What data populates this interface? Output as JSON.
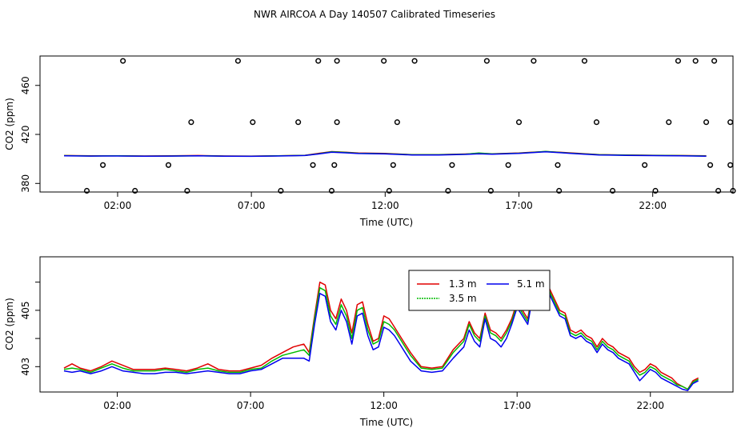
{
  "figure": {
    "title": "NWR AIRCOA A  Day 140507  Calibrated Timeseries"
  },
  "colors": {
    "axis": "#000000",
    "series_1_3m": "#e00000",
    "series_3_5m": "#00bb00",
    "series_5_1m": "#0000ee",
    "markers": "#000000"
  },
  "chart_data": [
    {
      "type": "line",
      "id": "top",
      "title": "",
      "xlabel": "Time (UTC)",
      "ylabel": "CO2 (ppm)",
      "xlim": [
        -0.9,
        25.0
      ],
      "ylim": [
        373,
        484
      ],
      "x_ticks": [
        2,
        7,
        12,
        17,
        22
      ],
      "x_tick_labels": [
        "02:00",
        "07:00",
        "12:00",
        "17:00",
        "22:00"
      ],
      "y_ticks": [
        380,
        420,
        460
      ],
      "y_tick_labels": [
        "380",
        "420",
        "460"
      ],
      "legend": null,
      "grid": false,
      "series": [
        {
          "color_key": "series_1_3m",
          "x": [
            0,
            1,
            2,
            3,
            4,
            5,
            6,
            7,
            8,
            9,
            9.5,
            10,
            10.5,
            11,
            12,
            13,
            14,
            15,
            15.5,
            16,
            17,
            17.5,
            18,
            18.5,
            19,
            20,
            21,
            22,
            23,
            24
          ],
          "y": [
            402.8,
            402.5,
            402.6,
            402.4,
            402.5,
            402.8,
            402.4,
            402.3,
            402.6,
            403,
            404.5,
            406,
            405.5,
            404.8,
            404.5,
            403.5,
            403.5,
            404,
            404.5,
            404.2,
            404.8,
            405.5,
            406,
            405.5,
            404.8,
            403.5,
            403.2,
            403,
            402.8,
            402.5
          ]
        },
        {
          "color_key": "series_3_5m",
          "x": [
            0,
            1,
            2,
            3,
            4,
            5,
            6,
            7,
            8,
            9,
            9.5,
            10,
            10.5,
            11,
            12,
            13,
            14,
            15,
            15.5,
            16,
            17,
            17.5,
            18,
            18.5,
            19,
            20,
            21,
            22,
            23,
            24
          ],
          "y": [
            402.7,
            402.4,
            402.5,
            402.3,
            402.4,
            402.6,
            402.3,
            402.2,
            402.5,
            402.9,
            404.2,
            405.8,
            405.3,
            404.6,
            404.3,
            403.4,
            403.4,
            403.9,
            404.8,
            404.1,
            404.7,
            405.3,
            406.2,
            405.3,
            404.6,
            403.4,
            403.1,
            402.9,
            402.7,
            402.4
          ]
        },
        {
          "color_key": "series_5_1m",
          "x": [
            0,
            1,
            2,
            3,
            4,
            5,
            6,
            7,
            8,
            9,
            9.5,
            10,
            10.5,
            11,
            12,
            13,
            14,
            15,
            15.5,
            16,
            17,
            17.5,
            18,
            18.5,
            19,
            20,
            21,
            22,
            23,
            24
          ],
          "y": [
            402.6,
            402.3,
            402.4,
            402.2,
            402.3,
            402.5,
            402.2,
            402.1,
            402.4,
            402.8,
            404,
            405.5,
            405,
            404.4,
            404.1,
            403.2,
            403.2,
            403.7,
            404.2,
            403.9,
            404.5,
            405.1,
            405.8,
            405.1,
            404.4,
            403.2,
            402.9,
            402.7,
            402.5,
            402.2
          ]
        },
        {
          "color_key": "markers",
          "mode": "markers",
          "x": [
            0.85,
            1.45,
            2.2,
            2.65,
            3.9,
            4.6,
            4.75,
            6.5,
            7.05,
            8.1,
            8.75,
            9.3,
            9.5,
            10.0,
            10.1,
            10.2,
            10.2,
            11.95,
            12.15,
            12.3,
            12.45,
            13.1,
            14.35,
            14.5,
            15.8,
            15.95,
            16.6,
            17.0,
            17.55,
            18.45,
            18.5,
            19.45,
            19.9,
            20.5,
            21.7,
            22.1,
            22.6,
            22.95,
            23.6,
            24.0,
            24.15,
            24.3,
            24.45,
            24.9,
            24.9,
            25.0
          ],
          "y": [
            374,
            395,
            480,
            374,
            395,
            374,
            430,
            480,
            430,
            374,
            430,
            395,
            480,
            374,
            395,
            480,
            430,
            480,
            374,
            395,
            430,
            480,
            374,
            395,
            480,
            374,
            395,
            430,
            480,
            395,
            374,
            480,
            430,
            374,
            395,
            374,
            430,
            480,
            480,
            430,
            395,
            480,
            374,
            430,
            395,
            374
          ]
        }
      ]
    },
    {
      "type": "line",
      "id": "bottom",
      "title": "",
      "xlabel": "Time (UTC)",
      "ylabel": "CO2 (ppm)",
      "xlim": [
        -0.9,
        25.1
      ],
      "ylim": [
        402.1,
        406.9
      ],
      "x_ticks": [
        2,
        7,
        12,
        17,
        22
      ],
      "x_tick_labels": [
        "02:00",
        "07:00",
        "12:00",
        "17:00",
        "22:00"
      ],
      "y_ticks": [
        403,
        404,
        405,
        406
      ],
      "y_tick_labels": [
        "403",
        "",
        "405",
        ""
      ],
      "legend": "top-center",
      "grid": false,
      "series": [
        {
          "name": "1.3 m",
          "color_key": "series_1_3m",
          "x": [
            0,
            0.3,
            0.6,
            1,
            1.4,
            1.8,
            2.2,
            2.6,
            3,
            3.4,
            3.8,
            4.2,
            4.6,
            5,
            5.4,
            5.8,
            6.2,
            6.6,
            7,
            7.4,
            7.8,
            8.2,
            8.6,
            9,
            9.2,
            9.4,
            9.6,
            9.8,
            10,
            10.2,
            10.4,
            10.6,
            10.8,
            11,
            11.2,
            11.4,
            11.6,
            11.8,
            12,
            12.2,
            12.4,
            12.6,
            12.8,
            13,
            13.4,
            13.8,
            14.2,
            14.6,
            15,
            15.2,
            15.4,
            15.6,
            15.8,
            16,
            16.2,
            16.4,
            16.6,
            16.8,
            17,
            17.2,
            17.4,
            17.6,
            17.8,
            18,
            18.2,
            18.4,
            18.6,
            18.8,
            19,
            19.2,
            19.4,
            19.6,
            19.8,
            20,
            20.2,
            20.4,
            20.6,
            20.8,
            21,
            21.2,
            21.4,
            21.6,
            21.8,
            22,
            22.2,
            22.4,
            22.6,
            22.8,
            23,
            23.2,
            23.4,
            23.6,
            23.8
          ],
          "y": [
            402.95,
            403.1,
            402.95,
            402.85,
            403.0,
            403.2,
            403.05,
            402.9,
            402.9,
            402.9,
            402.95,
            402.9,
            402.85,
            402.95,
            403.1,
            402.9,
            402.85,
            402.85,
            402.95,
            403.05,
            403.3,
            403.5,
            403.7,
            403.8,
            403.5,
            404.8,
            406.0,
            405.9,
            405.0,
            404.7,
            405.4,
            405.0,
            404.2,
            405.2,
            405.3,
            404.5,
            403.9,
            404.0,
            404.8,
            404.7,
            404.4,
            404.1,
            403.8,
            403.5,
            403.0,
            402.95,
            403.0,
            403.6,
            404.0,
            404.6,
            404.2,
            404.0,
            404.9,
            404.3,
            404.2,
            404.0,
            404.3,
            404.7,
            405.3,
            405.0,
            404.7,
            405.8,
            406.2,
            405.5,
            405.8,
            405.4,
            405.0,
            404.9,
            404.3,
            404.2,
            404.3,
            404.1,
            404.0,
            403.7,
            404.0,
            403.8,
            403.7,
            403.5,
            403.4,
            403.3,
            403.0,
            402.8,
            402.9,
            403.1,
            403.0,
            402.8,
            402.7,
            402.6,
            402.4,
            402.3,
            402.2,
            402.5,
            402.6
          ]
        },
        {
          "name": "3.5 m",
          "color_key": "series_3_5m",
          "x": [
            0,
            0.3,
            0.6,
            1,
            1.4,
            1.8,
            2.2,
            2.6,
            3,
            3.4,
            3.8,
            4.2,
            4.6,
            5,
            5.4,
            5.8,
            6.2,
            6.6,
            7,
            7.4,
            7.8,
            8.2,
            8.6,
            9,
            9.2,
            9.4,
            9.6,
            9.8,
            10,
            10.2,
            10.4,
            10.6,
            10.8,
            11,
            11.2,
            11.4,
            11.6,
            11.8,
            12,
            12.2,
            12.4,
            12.6,
            12.8,
            13,
            13.4,
            13.8,
            14.2,
            14.6,
            15,
            15.2,
            15.4,
            15.6,
            15.8,
            16,
            16.2,
            16.4,
            16.6,
            16.8,
            17,
            17.2,
            17.4,
            17.6,
            17.8,
            18,
            18.2,
            18.4,
            18.6,
            18.8,
            19,
            19.2,
            19.4,
            19.6,
            19.8,
            20,
            20.2,
            20.4,
            20.6,
            20.8,
            21,
            21.2,
            21.4,
            21.6,
            21.8,
            22,
            22.2,
            22.4,
            22.6,
            22.8,
            23,
            23.2,
            23.4,
            23.6,
            23.8
          ],
          "y": [
            402.9,
            402.95,
            402.9,
            402.8,
            402.95,
            403.1,
            402.95,
            402.85,
            402.85,
            402.85,
            402.9,
            402.85,
            402.8,
            402.9,
            402.95,
            402.85,
            402.8,
            402.8,
            402.9,
            402.95,
            403.2,
            403.4,
            403.5,
            403.6,
            403.4,
            404.7,
            405.8,
            405.7,
            404.8,
            404.5,
            405.2,
            404.8,
            404.0,
            405.0,
            405.1,
            404.3,
            403.8,
            403.9,
            404.6,
            404.5,
            404.3,
            404.0,
            403.7,
            403.4,
            402.95,
            402.9,
            402.95,
            403.5,
            403.9,
            404.5,
            404.1,
            403.9,
            404.8,
            404.2,
            404.1,
            403.9,
            404.2,
            404.6,
            405.2,
            404.9,
            404.6,
            405.7,
            406.1,
            405.4,
            405.7,
            405.3,
            404.9,
            404.8,
            404.2,
            404.1,
            404.2,
            404.0,
            403.9,
            403.6,
            403.9,
            403.7,
            403.6,
            403.4,
            403.3,
            403.2,
            402.9,
            402.7,
            402.8,
            403.0,
            402.9,
            402.7,
            402.6,
            402.5,
            402.35,
            402.3,
            402.2,
            402.45,
            402.55
          ]
        },
        {
          "name": "5.1 m",
          "color_key": "series_5_1m",
          "x": [
            0,
            0.3,
            0.6,
            1,
            1.4,
            1.8,
            2.2,
            2.6,
            3,
            3.4,
            3.8,
            4.2,
            4.6,
            5,
            5.4,
            5.8,
            6.2,
            6.6,
            7,
            7.4,
            7.8,
            8.2,
            8.6,
            9,
            9.2,
            9.4,
            9.6,
            9.8,
            10,
            10.2,
            10.4,
            10.6,
            10.8,
            11,
            11.2,
            11.4,
            11.6,
            11.8,
            12,
            12.2,
            12.4,
            12.6,
            12.8,
            13,
            13.4,
            13.8,
            14.2,
            14.6,
            15,
            15.2,
            15.4,
            15.6,
            15.8,
            16,
            16.2,
            16.4,
            16.6,
            16.8,
            17,
            17.2,
            17.4,
            17.6,
            17.8,
            18,
            18.2,
            18.4,
            18.6,
            18.8,
            19,
            19.2,
            19.4,
            19.6,
            19.8,
            20,
            20.2,
            20.4,
            20.6,
            20.8,
            21,
            21.2,
            21.4,
            21.6,
            21.8,
            22,
            22.2,
            22.4,
            22.6,
            22.8,
            23,
            23.2,
            23.4,
            23.6,
            23.8
          ],
          "y": [
            402.85,
            402.8,
            402.85,
            402.75,
            402.85,
            403.0,
            402.85,
            402.8,
            402.75,
            402.75,
            402.8,
            402.8,
            402.75,
            402.8,
            402.85,
            402.8,
            402.75,
            402.75,
            402.85,
            402.9,
            403.1,
            403.3,
            403.3,
            403.3,
            403.2,
            404.5,
            405.6,
            405.5,
            404.6,
            404.3,
            405.0,
            404.6,
            403.8,
            404.8,
            404.9,
            404.1,
            403.6,
            403.7,
            404.4,
            404.3,
            404.1,
            403.8,
            403.5,
            403.2,
            402.85,
            402.8,
            402.85,
            403.3,
            403.7,
            404.3,
            403.9,
            403.7,
            404.7,
            404.0,
            403.9,
            403.7,
            404.0,
            404.5,
            405.1,
            404.8,
            404.5,
            405.6,
            406.3,
            405.3,
            405.6,
            405.2,
            404.8,
            404.7,
            404.1,
            404.0,
            404.1,
            403.9,
            403.8,
            403.5,
            403.8,
            403.6,
            403.5,
            403.3,
            403.2,
            403.1,
            402.8,
            402.5,
            402.7,
            402.9,
            402.8,
            402.6,
            402.5,
            402.4,
            402.3,
            402.2,
            402.15,
            402.4,
            402.5
          ]
        }
      ]
    }
  ]
}
